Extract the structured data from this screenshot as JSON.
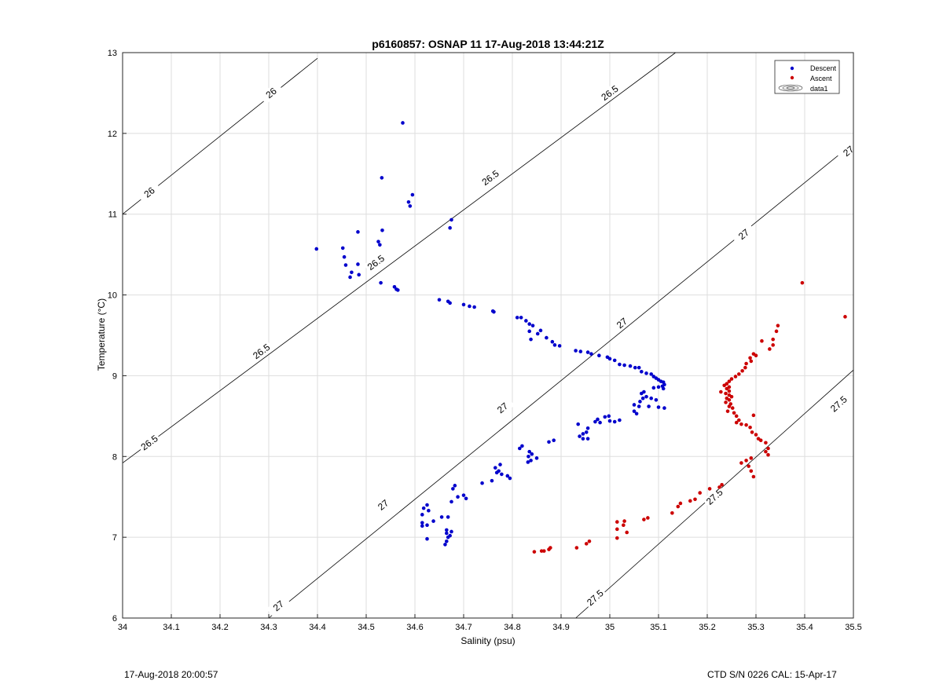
{
  "chart_data": {
    "type": "scatter",
    "title": "p6160857: OSNAP 11 17-Aug-2018 13:44:21Z",
    "xlabel": "Salinity (psu)",
    "ylabel": "Temperature (°C)",
    "xlim": [
      34,
      35.5
    ],
    "ylim": [
      6,
      13
    ],
    "xticks": [
      "34",
      "34.1",
      "34.2",
      "34.3",
      "34.4",
      "34.5",
      "34.6",
      "34.7",
      "34.8",
      "34.9",
      "35",
      "35.1",
      "35.2",
      "35.3",
      "35.4",
      "35.5"
    ],
    "yticks": [
      "6",
      "7",
      "8",
      "9",
      "10",
      "11",
      "12",
      "13"
    ],
    "grid": true,
    "legend_position": "top-right",
    "legend": [
      "Descent",
      "Ascent",
      "data1"
    ],
    "colors": {
      "descent": "#0000cc",
      "ascent": "#cc0000",
      "contour": "#000000",
      "grid": "#dedede"
    },
    "contours": [
      {
        "label": "26",
        "points": [
          [
            34.0,
            11.0
          ],
          [
            34.4,
            12.93
          ]
        ],
        "labels_at": [
          [
            34.055,
            11.27
          ],
          [
            34.305,
            12.5
          ]
        ]
      },
      {
        "label": "26.5",
        "points": [
          [
            34.0,
            7.92
          ],
          [
            35.135,
            13.0
          ]
        ],
        "labels_at": [
          [
            34.055,
            8.17
          ],
          [
            34.285,
            9.3
          ],
          [
            34.52,
            10.4
          ],
          [
            34.755,
            11.45
          ],
          [
            35.0,
            12.5
          ]
        ]
      },
      {
        "label": "27",
        "points": [
          [
            34.3,
            6.0
          ],
          [
            35.5,
            11.88
          ]
        ],
        "labels_at": [
          [
            34.32,
            6.15
          ],
          [
            34.535,
            7.4
          ],
          [
            34.78,
            8.6
          ],
          [
            35.025,
            9.65
          ],
          [
            35.275,
            10.75
          ],
          [
            35.49,
            11.78
          ]
        ]
      },
      {
        "label": "27.5",
        "points": [
          [
            34.93,
            6.0
          ],
          [
            35.5,
            9.07
          ]
        ],
        "labels_at": [
          [
            34.97,
            6.25
          ],
          [
            35.215,
            7.5
          ],
          [
            35.47,
            8.65
          ]
        ]
      }
    ],
    "series": [
      {
        "name": "Descent",
        "points": [
          [
            34.575,
            12.13
          ],
          [
            34.532,
            11.45
          ],
          [
            34.595,
            11.24
          ],
          [
            34.587,
            11.15
          ],
          [
            34.59,
            11.1
          ],
          [
            34.675,
            10.93
          ],
          [
            34.672,
            10.83
          ],
          [
            34.533,
            10.8
          ],
          [
            34.483,
            10.78
          ],
          [
            34.398,
            10.57
          ],
          [
            34.452,
            10.58
          ],
          [
            34.525,
            10.66
          ],
          [
            34.528,
            10.62
          ],
          [
            34.455,
            10.47
          ],
          [
            34.458,
            10.37
          ],
          [
            34.483,
            10.38
          ],
          [
            34.47,
            10.28
          ],
          [
            34.485,
            10.25
          ],
          [
            34.467,
            10.22
          ],
          [
            34.53,
            10.15
          ],
          [
            34.558,
            10.1
          ],
          [
            34.562,
            10.07
          ],
          [
            34.565,
            10.06
          ],
          [
            34.65,
            9.94
          ],
          [
            34.668,
            9.92
          ],
          [
            34.672,
            9.9
          ],
          [
            34.7,
            9.88
          ],
          [
            34.712,
            9.86
          ],
          [
            34.722,
            9.85
          ],
          [
            34.76,
            9.8
          ],
          [
            34.762,
            9.79
          ],
          [
            34.81,
            9.72
          ],
          [
            34.818,
            9.72
          ],
          [
            34.828,
            9.68
          ],
          [
            34.835,
            9.64
          ],
          [
            34.842,
            9.62
          ],
          [
            34.835,
            9.55
          ],
          [
            34.858,
            9.56
          ],
          [
            34.852,
            9.52
          ],
          [
            34.838,
            9.45
          ],
          [
            34.87,
            9.47
          ],
          [
            34.882,
            9.42
          ],
          [
            34.887,
            9.38
          ],
          [
            34.897,
            9.37
          ],
          [
            34.93,
            9.31
          ],
          [
            34.94,
            9.3
          ],
          [
            34.955,
            9.29
          ],
          [
            34.962,
            9.27
          ],
          [
            34.978,
            9.25
          ],
          [
            34.995,
            9.23
          ],
          [
            35.0,
            9.21
          ],
          [
            35.01,
            9.19
          ],
          [
            35.02,
            9.14
          ],
          [
            35.03,
            9.13
          ],
          [
            35.042,
            9.12
          ],
          [
            35.052,
            9.1
          ],
          [
            35.06,
            9.1
          ],
          [
            35.065,
            9.05
          ],
          [
            35.075,
            9.03
          ],
          [
            35.085,
            9.02
          ],
          [
            35.09,
            8.99
          ],
          [
            35.095,
            8.97
          ],
          [
            35.1,
            8.95
          ],
          [
            35.105,
            8.93
          ],
          [
            35.11,
            8.92
          ],
          [
            35.112,
            8.89
          ],
          [
            35.108,
            8.87
          ],
          [
            35.1,
            8.86
          ],
          [
            35.11,
            8.84
          ],
          [
            35.09,
            8.85
          ],
          [
            35.07,
            8.8
          ],
          [
            35.065,
            8.78
          ],
          [
            35.075,
            8.74
          ],
          [
            35.068,
            8.72
          ],
          [
            35.085,
            8.72
          ],
          [
            35.095,
            8.7
          ],
          [
            35.062,
            8.68
          ],
          [
            35.05,
            8.64
          ],
          [
            35.06,
            8.62
          ],
          [
            35.08,
            8.62
          ],
          [
            35.1,
            8.61
          ],
          [
            35.112,
            8.6
          ],
          [
            35.05,
            8.56
          ],
          [
            35.055,
            8.53
          ],
          [
            35.02,
            8.45
          ],
          [
            35.0,
            8.44
          ],
          [
            35.01,
            8.43
          ],
          [
            34.99,
            8.49
          ],
          [
            34.998,
            8.5
          ],
          [
            34.975,
            8.46
          ],
          [
            34.97,
            8.43
          ],
          [
            34.98,
            8.42
          ],
          [
            34.955,
            8.35
          ],
          [
            34.952,
            8.3
          ],
          [
            34.945,
            8.28
          ],
          [
            34.938,
            8.25
          ],
          [
            34.935,
            8.4
          ],
          [
            34.955,
            8.22
          ],
          [
            34.945,
            8.22
          ],
          [
            34.885,
            8.2
          ],
          [
            34.875,
            8.18
          ],
          [
            34.82,
            8.13
          ],
          [
            34.815,
            8.1
          ],
          [
            34.835,
            8.06
          ],
          [
            34.84,
            8.03
          ],
          [
            34.833,
            8.0
          ],
          [
            34.85,
            7.98
          ],
          [
            34.838,
            7.95
          ],
          [
            34.832,
            7.93
          ],
          [
            34.775,
            7.9
          ],
          [
            34.765,
            7.86
          ],
          [
            34.772,
            7.82
          ],
          [
            34.778,
            7.78
          ],
          [
            34.79,
            7.76
          ],
          [
            34.768,
            7.8
          ],
          [
            34.795,
            7.73
          ],
          [
            34.758,
            7.7
          ],
          [
            34.738,
            7.67
          ],
          [
            34.678,
            7.6
          ],
          [
            34.682,
            7.64
          ],
          [
            34.7,
            7.52
          ],
          [
            34.705,
            7.48
          ],
          [
            34.688,
            7.5
          ],
          [
            34.675,
            7.44
          ],
          [
            34.625,
            7.4
          ],
          [
            34.618,
            7.36
          ],
          [
            34.628,
            7.33
          ],
          [
            34.615,
            7.28
          ],
          [
            34.655,
            7.25
          ],
          [
            34.668,
            7.25
          ],
          [
            34.638,
            7.2
          ],
          [
            34.615,
            7.18
          ],
          [
            34.625,
            7.15
          ],
          [
            34.615,
            7.14
          ],
          [
            34.665,
            7.09
          ],
          [
            34.675,
            7.07
          ],
          [
            34.665,
            7.05
          ],
          [
            34.672,
            7.02
          ],
          [
            34.668,
            7.0
          ],
          [
            34.625,
            6.98
          ],
          [
            34.665,
            6.95
          ],
          [
            34.662,
            6.91
          ]
        ]
      },
      {
        "name": "Ascent",
        "points": [
          [
            35.395,
            10.15
          ],
          [
            35.483,
            9.73
          ],
          [
            35.345,
            9.62
          ],
          [
            35.342,
            9.55
          ],
          [
            35.335,
            9.45
          ],
          [
            35.312,
            9.43
          ],
          [
            35.335,
            9.38
          ],
          [
            35.328,
            9.33
          ],
          [
            35.295,
            9.27
          ],
          [
            35.3,
            9.25
          ],
          [
            35.288,
            9.22
          ],
          [
            35.29,
            9.18
          ],
          [
            35.28,
            9.15
          ],
          [
            35.278,
            9.1
          ],
          [
            35.272,
            9.06
          ],
          [
            35.265,
            9.02
          ],
          [
            35.258,
            8.99
          ],
          [
            35.25,
            8.96
          ],
          [
            35.245,
            8.93
          ],
          [
            35.24,
            8.9
          ],
          [
            35.235,
            8.88
          ],
          [
            35.245,
            8.86
          ],
          [
            35.24,
            8.84
          ],
          [
            35.245,
            8.81
          ],
          [
            35.228,
            8.8
          ],
          [
            35.238,
            8.78
          ],
          [
            35.245,
            8.76
          ],
          [
            35.25,
            8.74
          ],
          [
            35.24,
            8.72
          ],
          [
            35.245,
            8.7
          ],
          [
            35.238,
            8.67
          ],
          [
            35.248,
            8.65
          ],
          [
            35.245,
            8.62
          ],
          [
            35.252,
            8.6
          ],
          [
            35.242,
            8.56
          ],
          [
            35.255,
            8.54
          ],
          [
            35.26,
            8.5
          ],
          [
            35.265,
            8.45
          ],
          [
            35.26,
            8.42
          ],
          [
            35.27,
            8.4
          ],
          [
            35.28,
            8.39
          ],
          [
            35.288,
            8.36
          ],
          [
            35.295,
            8.51
          ],
          [
            35.292,
            8.3
          ],
          [
            35.3,
            8.27
          ],
          [
            35.305,
            8.22
          ],
          [
            35.31,
            8.2
          ],
          [
            35.32,
            8.17
          ],
          [
            35.325,
            8.1
          ],
          [
            35.32,
            8.06
          ],
          [
            35.325,
            8.02
          ],
          [
            35.29,
            7.98
          ],
          [
            35.28,
            7.95
          ],
          [
            35.27,
            7.92
          ],
          [
            35.285,
            7.88
          ],
          [
            35.29,
            7.82
          ],
          [
            35.295,
            7.75
          ],
          [
            35.23,
            7.65
          ],
          [
            35.225,
            7.62
          ],
          [
            35.205,
            7.6
          ],
          [
            35.185,
            7.55
          ],
          [
            35.175,
            7.47
          ],
          [
            35.165,
            7.45
          ],
          [
            35.145,
            7.42
          ],
          [
            35.14,
            7.38
          ],
          [
            35.128,
            7.3
          ],
          [
            35.078,
            7.24
          ],
          [
            35.07,
            7.22
          ],
          [
            35.03,
            7.2
          ],
          [
            35.015,
            7.19
          ],
          [
            35.028,
            7.15
          ],
          [
            35.015,
            7.1
          ],
          [
            35.035,
            7.06
          ],
          [
            35.015,
            6.99
          ],
          [
            34.958,
            6.95
          ],
          [
            34.952,
            6.92
          ],
          [
            34.932,
            6.87
          ],
          [
            34.878,
            6.87
          ],
          [
            34.875,
            6.85
          ],
          [
            34.865,
            6.83
          ],
          [
            34.86,
            6.83
          ],
          [
            34.845,
            6.82
          ]
        ]
      }
    ]
  },
  "footer": {
    "left": "17-Aug-2018 20:00:57",
    "right": "CTD S/N 0226  CAL: 15-Apr-17"
  }
}
